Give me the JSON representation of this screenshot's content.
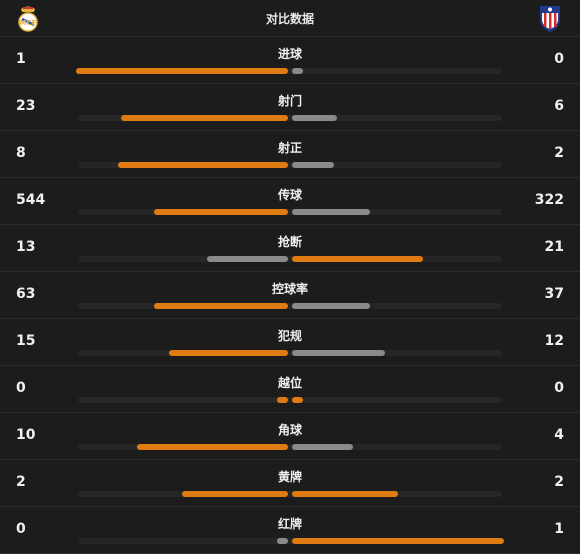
{
  "header": {
    "title": "对比数据",
    "home_icon": "real-madrid-crest-icon",
    "away_icon": "atletico-madrid-crest-icon"
  },
  "colors": {
    "leading": "#e07b12",
    "trailing": "#8a8a8a",
    "track": "#262626"
  },
  "stats": [
    {
      "label": "进球",
      "home": "1",
      "away": "0",
      "home_fraction": 1.0,
      "away_fraction": 0.05
    },
    {
      "label": "射门",
      "home": "23",
      "away": "6",
      "home_fraction": 0.79,
      "away_fraction": 0.21
    },
    {
      "label": "射正",
      "home": "8",
      "away": "2",
      "home_fraction": 0.8,
      "away_fraction": 0.2
    },
    {
      "label": "传球",
      "home": "544",
      "away": "322",
      "home_fraction": 0.63,
      "away_fraction": 0.37
    },
    {
      "label": "抢断",
      "home": "13",
      "away": "21",
      "home_fraction": 0.38,
      "away_fraction": 0.62
    },
    {
      "label": "控球率",
      "home": "63",
      "away": "37",
      "home_fraction": 0.63,
      "away_fraction": 0.37
    },
    {
      "label": "犯规",
      "home": "15",
      "away": "12",
      "home_fraction": 0.56,
      "away_fraction": 0.44
    },
    {
      "label": "越位",
      "home": "0",
      "away": "0",
      "home_fraction": 0.05,
      "away_fraction": 0.05
    },
    {
      "label": "角球",
      "home": "10",
      "away": "4",
      "home_fraction": 0.71,
      "away_fraction": 0.29
    },
    {
      "label": "黄牌",
      "home": "2",
      "away": "2",
      "home_fraction": 0.5,
      "away_fraction": 0.5
    },
    {
      "label": "红牌",
      "home": "0",
      "away": "1",
      "home_fraction": 0.05,
      "away_fraction": 1.0
    }
  ]
}
